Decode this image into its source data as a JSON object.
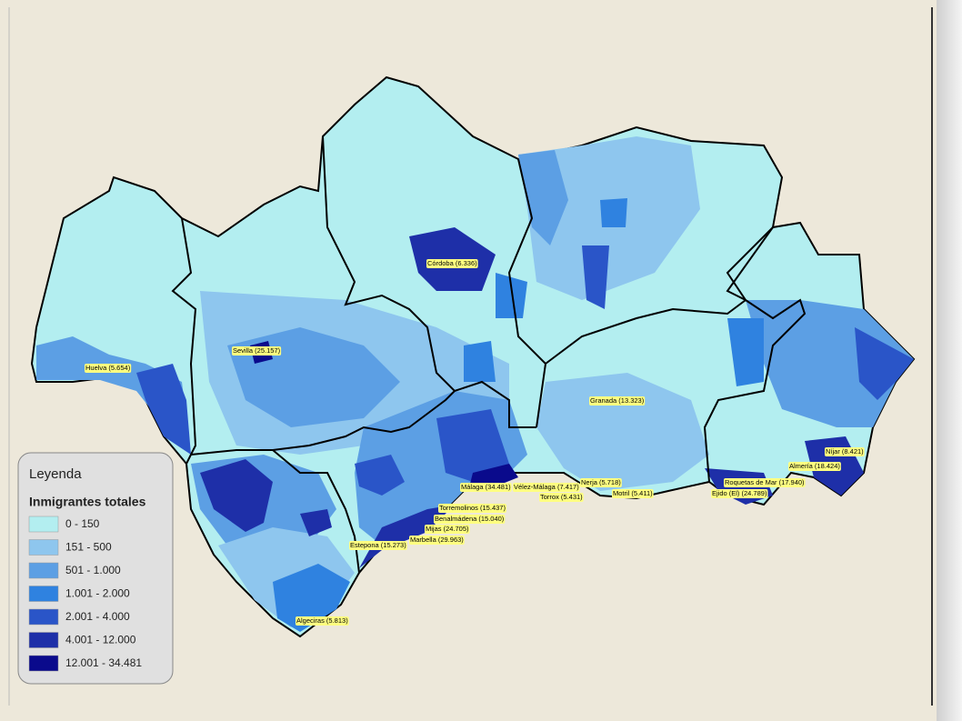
{
  "legend": {
    "title": "Leyenda",
    "subtitle": "Inmigrantes totales",
    "classes": [
      {
        "label": "0 - 150",
        "color": "#b3eef0"
      },
      {
        "label": "151 - 500",
        "color": "#8ec6ee"
      },
      {
        "label": "501 - 1.000",
        "color": "#5c9fe4"
      },
      {
        "label": "1.001 - 2.000",
        "color": "#2f82e0"
      },
      {
        "label": "2.001 - 4.000",
        "color": "#2a55c8"
      },
      {
        "label": "4.001 - 12.000",
        "color": "#1e2fa8"
      },
      {
        "label": "12.001 - 34.481",
        "color": "#0a0a8c"
      }
    ]
  },
  "places": [
    {
      "label": "Córdoba (6.336)"
    },
    {
      "label": "Sevilla (25.157)"
    },
    {
      "label": "Huelva (5.654)"
    },
    {
      "label": "Granada (13.323)"
    },
    {
      "label": "Níjar (8.421)"
    },
    {
      "label": "Almería (18.424)"
    },
    {
      "label": "Roquetas de Mar (17.940)"
    },
    {
      "label": "Ejido (El) (24.789)"
    },
    {
      "label": "Málaga (34.481)"
    },
    {
      "label": "Vélez-Málaga (7.417)"
    },
    {
      "label": "Nerja (5.718)"
    },
    {
      "label": "Torrox (5.431)"
    },
    {
      "label": "Motril (5.411)"
    },
    {
      "label": "Torremolinos (15.437)"
    },
    {
      "label": "Benalmádena (15.040)"
    },
    {
      "label": "Mijas (24.705)"
    },
    {
      "label": "Marbella (29.963)"
    },
    {
      "label": "Estepona (15.273)"
    },
    {
      "label": "Algeciras (5.813)"
    }
  ]
}
